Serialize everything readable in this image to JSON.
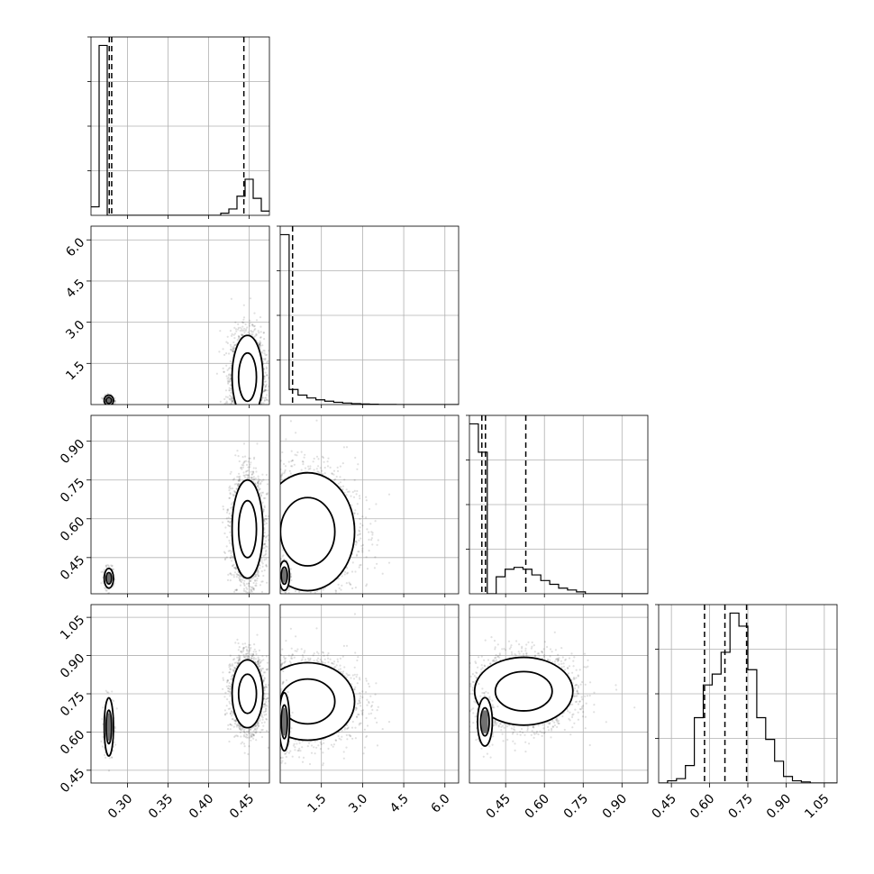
{
  "chart_data": {
    "type": "corner",
    "title": "",
    "parameters": [
      {
        "index": 0,
        "range": [
          0.255,
          0.475
        ],
        "x_ticks": [
          0.3,
          0.35,
          0.4,
          0.45
        ],
        "x_tick_labels": [
          "0.30",
          "0.35",
          "0.40",
          "0.45"
        ]
      },
      {
        "index": 1,
        "range": [
          0.0,
          6.5
        ],
        "y_ticks": [
          1.5,
          3.0,
          4.5,
          6.0
        ],
        "y_tick_labels": [
          "1.5",
          "3.0",
          "4.5",
          "6.0"
        ],
        "x_ticks": [
          1.5,
          3.0,
          4.5,
          6.0
        ],
        "x_tick_labels": [
          "1.5",
          "3.0",
          "4.5",
          "6.0"
        ]
      },
      {
        "index": 2,
        "range": [
          0.31,
          1.0
        ],
        "y_ticks": [
          0.45,
          0.6,
          0.75,
          0.9
        ],
        "y_tick_labels": [
          "0.45",
          "0.60",
          "0.75",
          "0.90"
        ],
        "x_ticks": [
          0.45,
          0.6,
          0.75,
          0.9
        ],
        "x_tick_labels": [
          "0.45",
          "0.60",
          "0.75",
          "0.90"
        ]
      },
      {
        "index": 3,
        "range": [
          0.4,
          1.1
        ],
        "y_ticks": [
          0.45,
          0.6,
          0.75,
          0.9,
          1.05
        ],
        "y_tick_labels": [
          "0.45",
          "0.60",
          "0.75",
          "0.90",
          "1.05"
        ],
        "x_ticks": [
          0.45,
          0.6,
          0.75,
          0.9,
          1.05
        ],
        "x_tick_labels": [
          "0.45",
          "0.60",
          "0.75",
          "0.90",
          "1.05"
        ]
      }
    ],
    "histograms": [
      {
        "param": 0,
        "bins": [
          0.255,
          0.265,
          0.275,
          0.285,
          0.295,
          0.305,
          0.315,
          0.325,
          0.335,
          0.345,
          0.355,
          0.365,
          0.375,
          0.385,
          0.395,
          0.405,
          0.415,
          0.425,
          0.435,
          0.445,
          0.455,
          0.465,
          0.475
        ],
        "counts": [
          0.04,
          0.8,
          0.0,
          0.0,
          0.0,
          0.0,
          0.0,
          0.0,
          0.0,
          0.0,
          0.0,
          0.0,
          0.0,
          0.0,
          0.0,
          0.0,
          0.01,
          0.03,
          0.09,
          0.17,
          0.08,
          0.02
        ],
        "quantiles": [
          0.2775,
          0.2805,
          0.4435
        ]
      },
      {
        "param": 1,
        "bins": [
          0.0,
          0.325,
          0.65,
          0.975,
          1.3,
          1.625,
          1.95,
          2.275,
          2.6,
          2.925,
          3.25,
          3.575,
          3.9,
          4.225,
          4.55,
          4.875,
          5.2,
          5.525,
          5.85,
          6.175,
          6.5
        ],
        "counts": [
          0.9,
          0.08,
          0.05,
          0.035,
          0.025,
          0.018,
          0.012,
          0.008,
          0.005,
          0.003,
          0.002,
          0.001,
          0.001,
          0.0,
          0.0,
          0.0,
          0.0,
          0.0,
          0.0,
          0.0
        ],
        "quantiles": [
          0.45
        ]
      },
      {
        "param": 2,
        "bins": [
          0.31,
          0.3445,
          0.379,
          0.4135,
          0.448,
          0.4825,
          0.517,
          0.5515,
          0.586,
          0.6205,
          0.655,
          0.6895,
          0.724,
          0.7585,
          0.793,
          0.8275,
          0.862,
          0.8965,
          0.931,
          0.9655,
          1.0
        ],
        "counts": [
          0.9,
          0.75,
          0.0,
          0.09,
          0.13,
          0.14,
          0.13,
          0.1,
          0.07,
          0.05,
          0.03,
          0.02,
          0.01,
          0.0,
          0.0,
          0.0,
          0.0,
          0.0,
          0.0,
          0.0
        ],
        "quantiles": [
          0.358,
          0.372,
          0.528
        ]
      },
      {
        "param": 3,
        "bins": [
          0.4,
          0.435,
          0.47,
          0.505,
          0.54,
          0.575,
          0.61,
          0.645,
          0.68,
          0.715,
          0.75,
          0.785,
          0.82,
          0.855,
          0.89,
          0.925,
          0.96,
          0.995,
          1.03,
          1.065,
          1.1
        ],
        "counts": [
          0.0,
          0.01,
          0.02,
          0.08,
          0.3,
          0.45,
          0.5,
          0.6,
          0.78,
          0.72,
          0.52,
          0.3,
          0.2,
          0.1,
          0.03,
          0.01,
          0.005,
          0.0,
          0.0,
          0.0
        ],
        "quantiles": [
          0.58,
          0.66,
          0.745
        ]
      }
    ],
    "scatter_panels": [
      {
        "row": 1,
        "col": 0,
        "clusters": [
          {
            "x": 0.448,
            "y": 1.0,
            "sx": 0.01,
            "sy": 0.8,
            "n": 2400
          },
          {
            "x": 0.277,
            "y": 0.15,
            "sx": 0.003,
            "sy": 0.1,
            "n": 300
          }
        ]
      },
      {
        "row": 2,
        "col": 0,
        "clusters": [
          {
            "x": 0.448,
            "y": 0.56,
            "sx": 0.01,
            "sy": 0.1,
            "n": 2400
          },
          {
            "x": 0.277,
            "y": 0.37,
            "sx": 0.003,
            "sy": 0.02,
            "n": 300
          }
        ]
      },
      {
        "row": 2,
        "col": 1,
        "clusters": [
          {
            "x": 1.0,
            "y": 0.55,
            "sx": 0.9,
            "sy": 0.12,
            "n": 2400
          },
          {
            "x": 0.15,
            "y": 0.38,
            "sx": 0.1,
            "sy": 0.03,
            "n": 300
          }
        ]
      },
      {
        "row": 3,
        "col": 0,
        "clusters": [
          {
            "x": 0.448,
            "y": 0.75,
            "sx": 0.01,
            "sy": 0.07,
            "n": 2400
          },
          {
            "x": 0.277,
            "y": 0.62,
            "sx": 0.003,
            "sy": 0.06,
            "n": 300
          }
        ]
      },
      {
        "row": 3,
        "col": 1,
        "clusters": [
          {
            "x": 1.0,
            "y": 0.72,
            "sx": 0.9,
            "sy": 0.08,
            "n": 2400
          },
          {
            "x": 0.15,
            "y": 0.64,
            "sx": 0.1,
            "sy": 0.06,
            "n": 300
          }
        ]
      },
      {
        "row": 3,
        "col": 2,
        "clusters": [
          {
            "x": 0.52,
            "y": 0.76,
            "sx": 0.1,
            "sy": 0.07,
            "n": 2400
          },
          {
            "x": 0.37,
            "y": 0.64,
            "sx": 0.015,
            "sy": 0.05,
            "n": 300
          }
        ]
      }
    ],
    "grid": true,
    "legend": "none"
  }
}
